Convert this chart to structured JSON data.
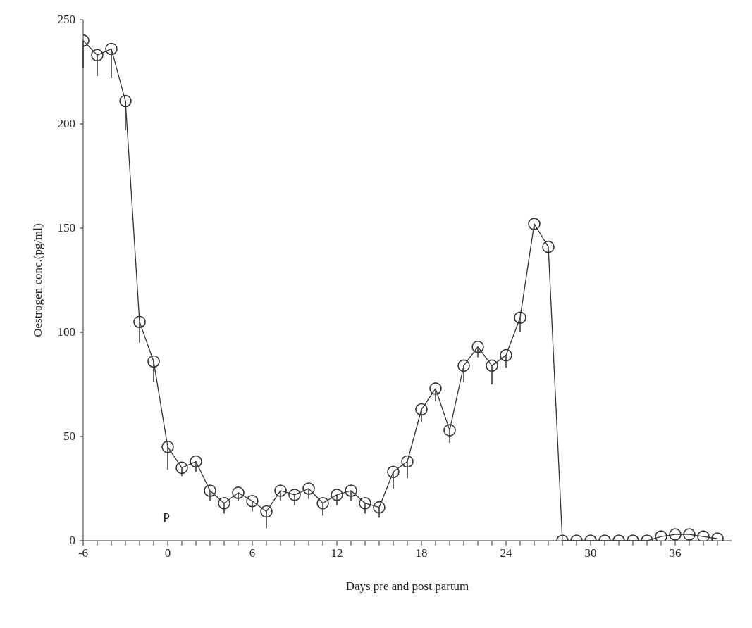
{
  "chart_data": {
    "type": "line",
    "xlabel": "Days pre and post partum",
    "ylabel": "Oestrogen conc.(pg/ml)",
    "x": [
      -6,
      -5,
      -4,
      -3,
      -2,
      -1,
      0,
      1,
      2,
      3,
      4,
      5,
      6,
      7,
      8,
      9,
      10,
      11,
      12,
      13,
      14,
      15,
      16,
      17,
      18,
      19,
      20,
      21,
      22,
      23,
      24,
      25,
      26,
      27,
      28,
      29,
      30,
      31,
      32,
      33,
      34,
      35,
      36,
      37,
      38,
      39
    ],
    "series": [
      {
        "color": "#333333",
        "values": [
          240,
          233,
          236,
          211,
          105,
          86,
          45,
          35,
          38,
          24,
          18,
          23,
          19,
          14,
          24,
          22,
          25,
          18,
          22,
          24,
          18,
          16,
          33,
          38,
          63,
          73,
          53,
          84,
          93,
          84,
          89,
          107,
          152,
          141,
          0,
          0,
          0,
          0,
          0,
          0,
          0,
          2,
          3,
          3,
          2,
          1
        ],
        "errors": [
          [
            227,
            240
          ],
          [
            223,
            233
          ],
          [
            222,
            236
          ],
          [
            197,
            211
          ],
          [
            95,
            105
          ],
          [
            76,
            86
          ],
          [
            34,
            45
          ],
          [
            31,
            35
          ],
          [
            33,
            38
          ],
          [
            19,
            24
          ],
          [
            13,
            18
          ],
          [
            19,
            23
          ],
          [
            14,
            19
          ],
          [
            6,
            14
          ],
          [
            19,
            24
          ],
          [
            17,
            22
          ],
          [
            20,
            25
          ],
          [
            12,
            18
          ],
          [
            17,
            22
          ],
          [
            19,
            24
          ],
          [
            13,
            18
          ],
          [
            11,
            16
          ],
          [
            25,
            33
          ],
          [
            30,
            38
          ],
          [
            57,
            63
          ],
          [
            67,
            73
          ],
          [
            47,
            53
          ],
          [
            76,
            84
          ],
          [
            88,
            93
          ],
          [
            75,
            84
          ],
          [
            83,
            89
          ],
          [
            100,
            107
          ],
          [
            149,
            152
          ],
          null,
          null,
          null,
          null,
          null,
          null,
          null,
          null,
          null,
          null,
          null,
          null,
          null
        ]
      }
    ],
    "marker": "circle",
    "line_style": "solid",
    "grid": false,
    "legend": false,
    "xlim": [
      -6,
      40
    ],
    "xticks": [
      -6,
      {
        "value": -5,
        "label": null
      },
      {
        "value": -4,
        "label": null
      },
      {
        "value": -3,
        "label": null
      },
      {
        "value": -2,
        "label": null
      },
      {
        "value": -1,
        "label": null
      },
      0,
      {
        "value": 1,
        "label": null
      },
      {
        "value": 2,
        "label": null
      },
      {
        "value": 3,
        "label": null
      },
      {
        "value": 4,
        "label": null
      },
      {
        "value": 5,
        "label": null
      },
      6,
      {
        "value": 7,
        "label": null
      },
      {
        "value": 8,
        "label": null
      },
      {
        "value": 9,
        "label": null
      },
      {
        "value": 10,
        "label": null
      },
      {
        "value": 11,
        "label": null
      },
      12,
      {
        "value": 13,
        "label": null
      },
      {
        "value": 14,
        "label": null
      },
      {
        "value": 15,
        "label": null
      },
      {
        "value": 16,
        "label": null
      },
      {
        "value": 17,
        "label": null
      },
      18,
      {
        "value": 19,
        "label": null
      },
      {
        "value": 20,
        "label": null
      },
      {
        "value": 21,
        "label": null
      },
      {
        "value": 22,
        "label": null
      },
      {
        "value": 23,
        "label": null
      },
      24,
      {
        "value": 25,
        "label": null
      },
      {
        "value": 26,
        "label": null
      },
      {
        "value": 27,
        "label": null
      },
      {
        "value": 28,
        "label": null
      },
      {
        "value": 29,
        "label": null
      },
      30,
      {
        "value": 31,
        "label": null
      },
      {
        "value": 32,
        "label": null
      },
      {
        "value": 33,
        "label": null
      },
      {
        "value": 34,
        "label": null
      },
      {
        "value": 35,
        "label": null
      },
      36,
      {
        "value": 37,
        "label": null
      },
      {
        "value": 38,
        "label": null
      },
      {
        "value": 39,
        "label": null
      }
    ],
    "ylim": [
      0,
      250
    ],
    "yticks": [
      0,
      50,
      100,
      150,
      200,
      250
    ],
    "annotations": [
      "P"
    ]
  }
}
